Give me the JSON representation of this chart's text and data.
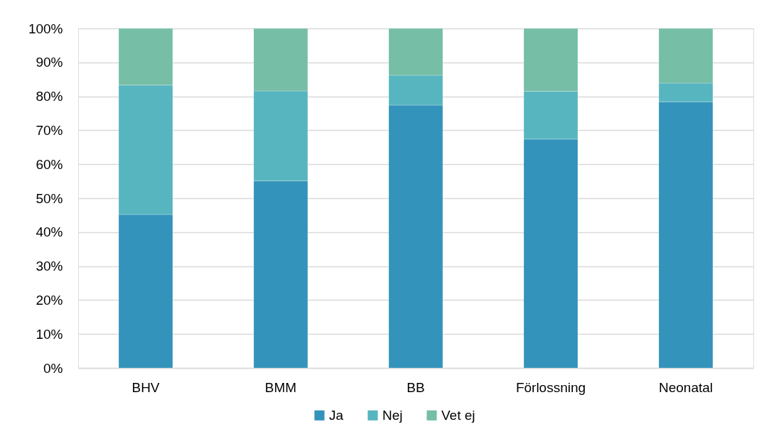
{
  "chart_data": {
    "type": "bar",
    "stacked": true,
    "categories": [
      "BHV",
      "BMM",
      "BB",
      "Förlossning",
      "Neonatal"
    ],
    "series": [
      {
        "name": "Ja",
        "color": "#3493ba",
        "values": [
          45.2,
          55.1,
          77.4,
          67.4,
          78.4
        ]
      },
      {
        "name": "Nej",
        "color": "#57b5c0",
        "values": [
          38.1,
          26.5,
          8.8,
          14.1,
          5.5
        ]
      },
      {
        "name": "Vet ej",
        "color": "#76bea6",
        "values": [
          16.7,
          18.4,
          13.8,
          18.5,
          16.1
        ]
      }
    ],
    "ylim": [
      0,
      100
    ],
    "yticks": [
      {
        "value": 0,
        "label": "0%"
      },
      {
        "value": 10,
        "label": "10%"
      },
      {
        "value": 20,
        "label": "20%"
      },
      {
        "value": 30,
        "label": "30%"
      },
      {
        "value": 40,
        "label": "40%"
      },
      {
        "value": 50,
        "label": "50%"
      },
      {
        "value": 60,
        "label": "60%"
      },
      {
        "value": 70,
        "label": "70%"
      },
      {
        "value": 80,
        "label": "80%"
      },
      {
        "value": 90,
        "label": "90%"
      },
      {
        "value": 100,
        "label": "100%"
      }
    ],
    "grid": "y",
    "legend": "bottom"
  }
}
